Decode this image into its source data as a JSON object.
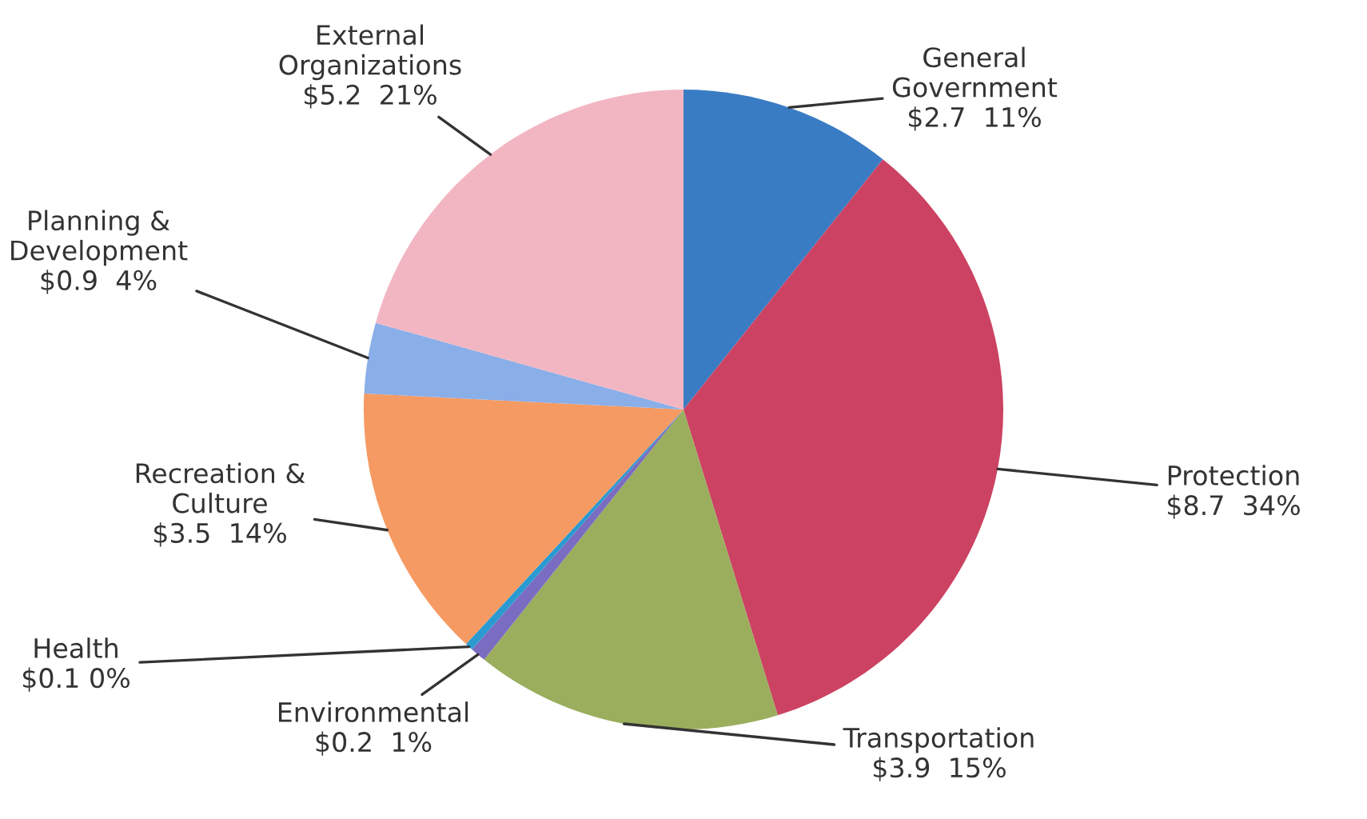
{
  "chart_data": {
    "type": "pie",
    "categories": [
      "General Government",
      "Protection",
      "Transportation",
      "Environmental",
      "Health",
      "Recreation & Culture",
      "Planning & Development",
      "External Organizations"
    ],
    "values": [
      2.7,
      8.7,
      3.9,
      0.2,
      0.1,
      3.5,
      0.9,
      5.2
    ],
    "value_labels": [
      "$2.7  11%",
      "$8.7  34%",
      "$3.9  15%",
      "$0.2  1%",
      "$0.1 0%",
      "$3.5  14%",
      "$0.9  4%",
      "$5.2  21%"
    ],
    "colors": [
      "#3a7cc4",
      "#cc4262",
      "#9aae5e",
      "#7a6cc0",
      "#2a9ad0",
      "#f59a62",
      "#8aaee8",
      "#f2b6c2"
    ],
    "legend": false
  }
}
